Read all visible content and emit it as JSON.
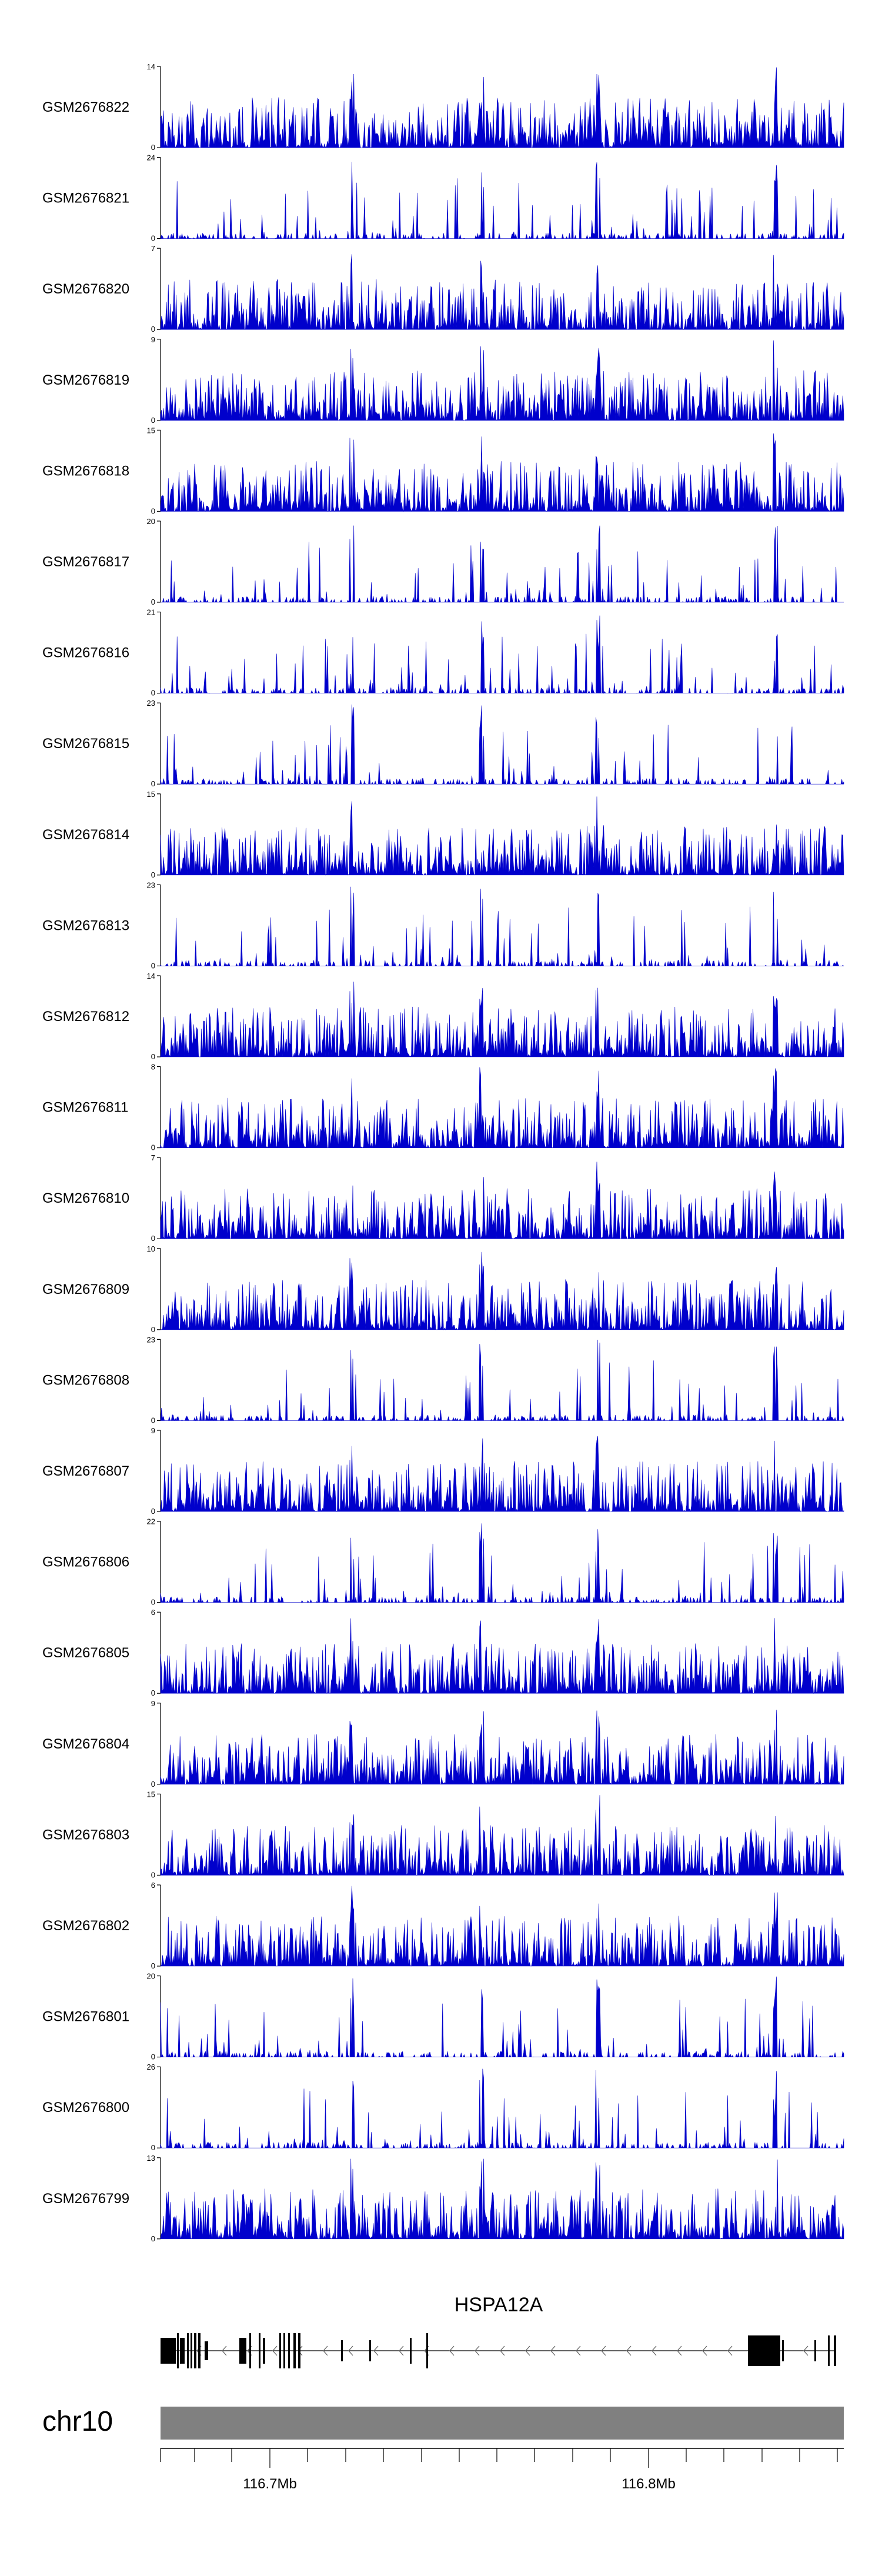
{
  "chart_data": {
    "type": "area",
    "tracks": [
      {
        "name": "GSM2676822",
        "ymax": 14
      },
      {
        "name": "GSM2676821",
        "ymax": 24
      },
      {
        "name": "GSM2676820",
        "ymax": 7
      },
      {
        "name": "GSM2676819",
        "ymax": 9
      },
      {
        "name": "GSM2676818",
        "ymax": 15
      },
      {
        "name": "GSM2676817",
        "ymax": 20
      },
      {
        "name": "GSM2676816",
        "ymax": 21
      },
      {
        "name": "GSM2676815",
        "ymax": 23
      },
      {
        "name": "GSM2676814",
        "ymax": 15
      },
      {
        "name": "GSM2676813",
        "ymax": 23
      },
      {
        "name": "GSM2676812",
        "ymax": 14
      },
      {
        "name": "GSM2676811",
        "ymax": 8
      },
      {
        "name": "GSM2676810",
        "ymax": 7
      },
      {
        "name": "GSM2676809",
        "ymax": 10
      },
      {
        "name": "GSM2676808",
        "ymax": 23
      },
      {
        "name": "GSM2676807",
        "ymax": 9
      },
      {
        "name": "GSM2676806",
        "ymax": 22
      },
      {
        "name": "GSM2676805",
        "ymax": 6
      },
      {
        "name": "GSM2676804",
        "ymax": 9
      },
      {
        "name": "GSM2676803",
        "ymax": 15
      },
      {
        "name": "GSM2676802",
        "ymax": 6
      },
      {
        "name": "GSM2676801",
        "ymax": 20
      },
      {
        "name": "GSM2676800",
        "ymax": 26
      },
      {
        "name": "GSM2676799",
        "ymax": 13
      }
    ],
    "ymin": 0,
    "gene": "HSPA12A",
    "chromosome": "chr10",
    "x_ticks": [
      "116.7Mb",
      "116.8Mb"
    ],
    "colors": {
      "signal": "#0000cc",
      "exon": "#000000",
      "chromosome_bar": "#808080",
      "axis": "#000000"
    }
  }
}
